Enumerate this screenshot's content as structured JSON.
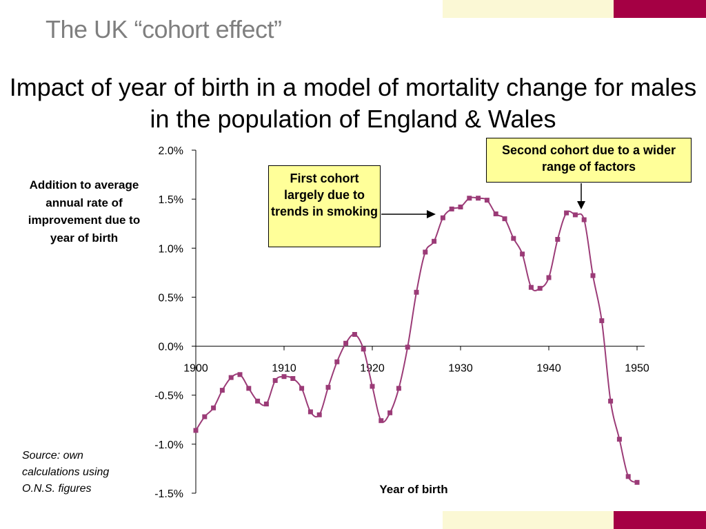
{
  "slide_title": "The UK “cohort effect”",
  "colors": {
    "series": "#9b3b77",
    "accent_dark": "#a50044",
    "accent_light": "#fbf8d5",
    "callout_fill": "#ffff99"
  },
  "callouts": {
    "first": "First cohort largely due to trends in smoking",
    "second": "Second cohort due to a wider range of factors"
  },
  "source_note": "Source: own calculations using O.N.S. figures",
  "chart_data": {
    "type": "line",
    "title": "Impact of year of birth in a model of mortality change for males in the population of England & Wales",
    "ylabel": "Addition to average annual rate of improvement due to year of birth",
    "xlabel": "Year of birth",
    "xlim": [
      1900,
      1950
    ],
    "ylim": [
      -1.5,
      2.0
    ],
    "x_ticks": [
      "1900",
      "1910",
      "1920",
      "1930",
      "1940",
      "1950"
    ],
    "y_ticks": [
      "2.0%",
      "1.5%",
      "1.0%",
      "0.5%",
      "0.0%",
      "-0.5%",
      "-1.0%",
      "-1.5%"
    ],
    "grid": false,
    "legend": "none",
    "marker": "square",
    "series": [
      {
        "x": [
          1900,
          1901,
          1902,
          1903,
          1904,
          1905,
          1906,
          1907,
          1908,
          1909,
          1910,
          1911,
          1912,
          1913,
          1914,
          1915,
          1916,
          1917,
          1918,
          1919,
          1920,
          1921,
          1922,
          1923,
          1924,
          1925,
          1926,
          1927,
          1928,
          1929,
          1930,
          1931,
          1932,
          1933,
          1934,
          1935,
          1936,
          1937,
          1938,
          1939,
          1940,
          1941,
          1942,
          1943,
          1944,
          1945,
          1946,
          1947,
          1948,
          1949,
          1950
        ],
        "values": [
          -0.86,
          -0.72,
          -0.63,
          -0.45,
          -0.32,
          -0.29,
          -0.43,
          -0.56,
          -0.59,
          -0.35,
          -0.31,
          -0.33,
          -0.43,
          -0.67,
          -0.7,
          -0.42,
          -0.16,
          0.03,
          0.12,
          -0.03,
          -0.41,
          -0.76,
          -0.68,
          -0.43,
          -0.01,
          0.55,
          0.96,
          1.07,
          1.31,
          1.4,
          1.42,
          1.51,
          1.51,
          1.49,
          1.35,
          1.3,
          1.1,
          0.94,
          0.6,
          0.59,
          0.7,
          1.09,
          1.36,
          1.34,
          1.29,
          0.72,
          0.26,
          -0.56,
          -0.95,
          -1.33,
          -1.39
        ]
      }
    ]
  }
}
